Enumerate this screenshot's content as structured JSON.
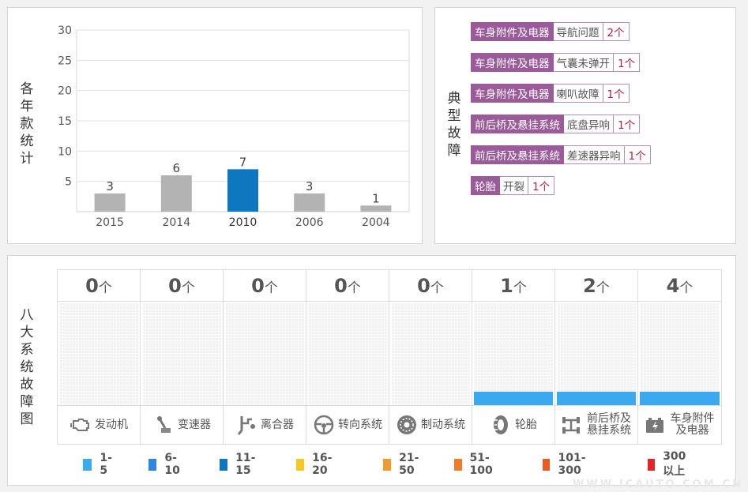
{
  "year_panel": {
    "title": "各年款统计",
    "chart_data": {
      "type": "bar",
      "categories": [
        "2015",
        "2014",
        "2010",
        "2006",
        "2004"
      ],
      "values": [
        3,
        6,
        7,
        3,
        1
      ],
      "highlight_index": 2,
      "yticks": [
        "30",
        "25",
        "20",
        "15",
        "10",
        "5"
      ],
      "ylim": [
        0,
        30
      ],
      "grid": true,
      "colors": {
        "bar": "#b3b3b3",
        "highlight": "#0d77c0"
      }
    }
  },
  "faults_panel": {
    "title": "典型故障",
    "items": [
      {
        "category": "车身附件及电器",
        "issue": "导航问题",
        "count": "2个"
      },
      {
        "category": "车身附件及电器",
        "issue": "气囊未弹开",
        "count": "1个"
      },
      {
        "category": "车身附件及电器",
        "issue": "喇叭故障",
        "count": "1个"
      },
      {
        "category": "前后桥及悬挂系统",
        "issue": "底盘异响",
        "count": "1个"
      },
      {
        "category": "前后桥及悬挂系统",
        "issue": "差速器异响",
        "count": "1个"
      },
      {
        "category": "轮胎",
        "issue": "开裂",
        "count": "1个"
      }
    ]
  },
  "systems_panel": {
    "title": "八大系统故障图",
    "unit": "个",
    "systems": [
      {
        "name": "发动机",
        "count": "0",
        "icon": "engine-icon",
        "level": 0
      },
      {
        "name": "变速器",
        "count": "0",
        "icon": "gearshift-icon",
        "level": 0
      },
      {
        "name": "离合器",
        "count": "0",
        "icon": "clutch-icon",
        "level": 0
      },
      {
        "name": "转向系统",
        "count": "0",
        "icon": "steering-wheel-icon",
        "level": 0
      },
      {
        "name": "制动系统",
        "count": "0",
        "icon": "brake-disc-icon",
        "level": 0
      },
      {
        "name": "轮胎",
        "count": "1",
        "icon": "tire-icon",
        "level": 1
      },
      {
        "name": "前后桥及悬挂系统",
        "count": "2",
        "icon": "axle-icon",
        "level": 1
      },
      {
        "name": "车身附件及电器",
        "count": "4",
        "icon": "battery-icon",
        "level": 1
      }
    ],
    "legend": [
      {
        "label": "1-5",
        "color": "#3aa9ef"
      },
      {
        "label": "6-10",
        "color": "#2f86e0"
      },
      {
        "label": "11-15",
        "color": "#0d77c0"
      },
      {
        "label": "16-20",
        "color": "#f8c820"
      },
      {
        "label": "21-50",
        "color": "#f39a2d"
      },
      {
        "label": "51-100",
        "color": "#f07c2a"
      },
      {
        "label": "101-300",
        "color": "#ec5a1d"
      },
      {
        "label": "300以上",
        "color": "#e8242b"
      }
    ]
  },
  "watermark": "WWW.ICAUTO.COM.CN"
}
